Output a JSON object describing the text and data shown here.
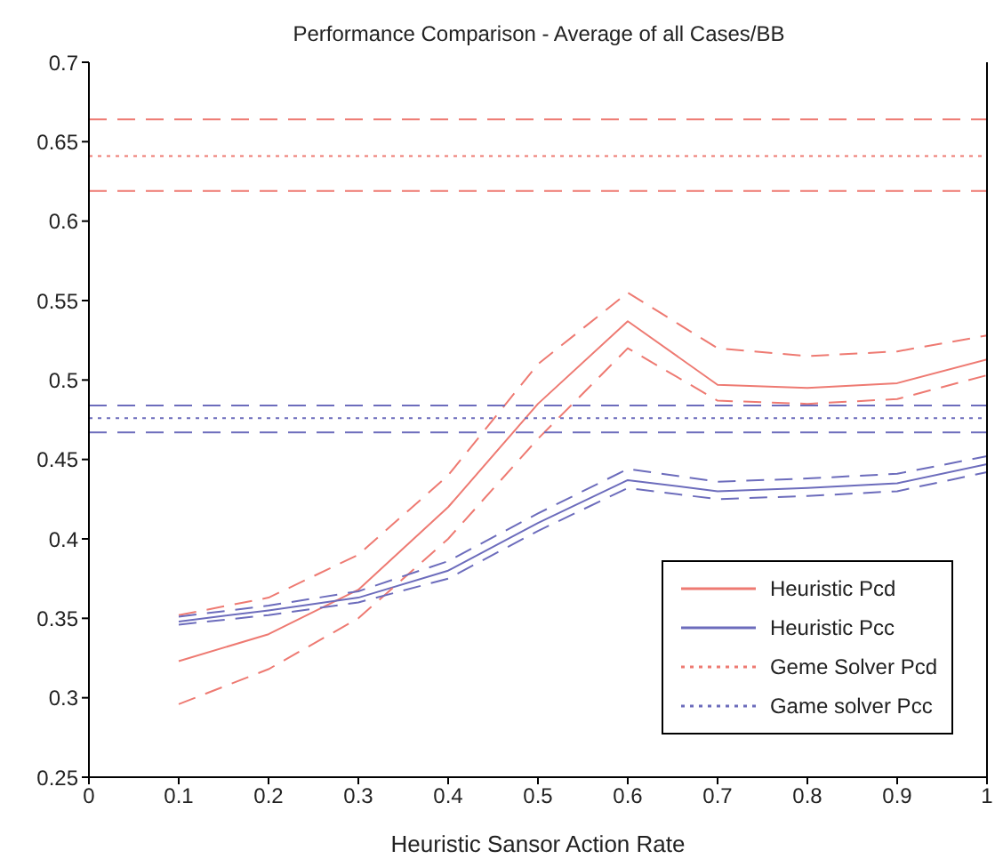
{
  "chart_data": {
    "type": "line",
    "title": "Performance Comparison - Average of all Cases/BB",
    "xlabel": "Heuristic Sansor Action Rate",
    "xlim": [
      0,
      1
    ],
    "xticks": [
      0,
      0.1,
      0.2,
      0.3,
      0.4,
      0.5,
      0.6,
      0.7,
      0.8,
      0.9,
      1
    ],
    "ylim": [
      0.25,
      0.7
    ],
    "yticks": [
      0.25,
      0.3,
      0.35,
      0.4,
      0.45,
      0.5,
      0.55,
      0.6,
      0.65,
      0.7
    ],
    "grid": false,
    "legend": "bottom right",
    "marker": "none",
    "series": [
      {
        "name": "Heuristic Pcd",
        "color": "#ee7a72",
        "line_style": "solid",
        "x": [
          0.1,
          0.2,
          0.3,
          0.4,
          0.5,
          0.6,
          0.7,
          0.8,
          0.9,
          1
        ],
        "values": [
          0.323,
          0.34,
          0.368,
          0.42,
          0.485,
          0.537,
          0.497,
          0.495,
          0.498,
          0.513
        ]
      },
      {
        "name": "Heuristic Pcc",
        "color": "#6c6cbc",
        "line_style": "solid",
        "x": [
          0.1,
          0.2,
          0.3,
          0.4,
          0.5,
          0.6,
          0.7,
          0.8,
          0.9,
          1
        ],
        "values": [
          0.348,
          0.355,
          0.363,
          0.38,
          0.41,
          0.437,
          0.43,
          0.432,
          0.435,
          0.447
        ]
      },
      {
        "name": "Geme Solver Pcd",
        "color": "#ee7a72",
        "line_style": "dotted",
        "x": [
          0,
          1
        ],
        "values": [
          0.641,
          0.641
        ]
      },
      {
        "name": "Game solver Pcc",
        "color": "#6c6cbc",
        "line_style": "dotted",
        "x": [
          0,
          1
        ],
        "values": [
          0.476,
          0.476
        ]
      },
      {
        "color": "#ee7a72",
        "line_style": "dashed",
        "x": [
          0.1,
          0.2,
          0.3,
          0.4,
          0.5,
          0.6,
          0.7,
          0.8,
          0.9,
          1
        ],
        "values": [
          0.296,
          0.318,
          0.35,
          0.4,
          0.463,
          0.52,
          0.487,
          0.485,
          0.488,
          0.503
        ]
      },
      {
        "color": "#ee7a72",
        "line_style": "dashed",
        "x": [
          0.1,
          0.2,
          0.3,
          0.4,
          0.5,
          0.6,
          0.7,
          0.8,
          0.9,
          1
        ],
        "values": [
          0.352,
          0.363,
          0.39,
          0.44,
          0.51,
          0.555,
          0.52,
          0.515,
          0.518,
          0.528
        ]
      },
      {
        "color": "#6c6cbc",
        "line_style": "dashed",
        "x": [
          0.1,
          0.2,
          0.3,
          0.4,
          0.5,
          0.6,
          0.7,
          0.8,
          0.9,
          1
        ],
        "values": [
          0.346,
          0.352,
          0.36,
          0.375,
          0.405,
          0.432,
          0.425,
          0.427,
          0.43,
          0.442
        ]
      },
      {
        "color": "#6c6cbc",
        "line_style": "dashed",
        "x": [
          0.1,
          0.2,
          0.3,
          0.4,
          0.5,
          0.6,
          0.7,
          0.8,
          0.9,
          1
        ],
        "values": [
          0.351,
          0.358,
          0.367,
          0.386,
          0.416,
          0.444,
          0.436,
          0.438,
          0.441,
          0.452
        ]
      },
      {
        "color": "#ee7a72",
        "line_style": "dashed",
        "x": [
          0,
          1
        ],
        "values": [
          0.619,
          0.619
        ]
      },
      {
        "color": "#ee7a72",
        "line_style": "dashed",
        "x": [
          0,
          1
        ],
        "values": [
          0.664,
          0.664
        ]
      },
      {
        "color": "#6c6cbc",
        "line_style": "dashed",
        "x": [
          0,
          1
        ],
        "values": [
          0.467,
          0.467
        ]
      },
      {
        "color": "#6c6cbc",
        "line_style": "dashed",
        "x": [
          0,
          1
        ],
        "values": [
          0.484,
          0.484
        ]
      }
    ]
  }
}
